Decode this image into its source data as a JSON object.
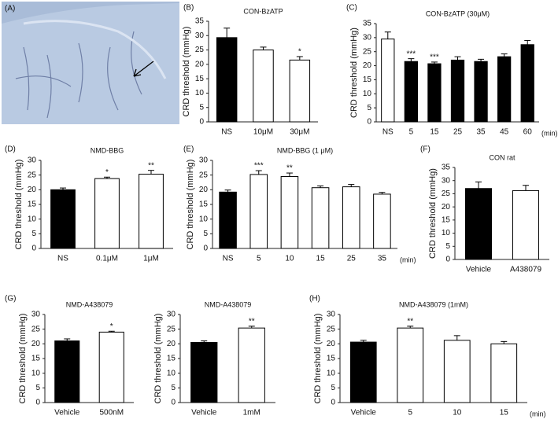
{
  "image_panel": {
    "panel": "(A)"
  },
  "chart_data": [
    {
      "type": "bar",
      "panel": "(B)",
      "title": "CON-BzATP",
      "y_label": "CRD threshold (mmHg)",
      "categories": [
        "NS",
        "10μM",
        "30μM"
      ],
      "values": [
        29.3,
        25,
        21.5
      ],
      "errors": [
        3.3,
        1,
        1.2
      ],
      "colors": [
        "#000000",
        "#ffffff",
        "#ffffff"
      ],
      "annotations": [
        null,
        null,
        "*"
      ],
      "ylim": [
        0,
        35
      ],
      "yticks": [
        0,
        5,
        10,
        15,
        20,
        25,
        30,
        35
      ]
    },
    {
      "type": "bar",
      "panel": "(C)",
      "title": "CON-BzATP (30μM)",
      "y_label": "CRD threshold (mmHg)",
      "x_label": "(min)",
      "categories": [
        "NS",
        "5",
        "15",
        "25",
        "35",
        "45",
        "60"
      ],
      "values": [
        29.5,
        21.5,
        20.7,
        22,
        21.5,
        23.2,
        27.5
      ],
      "errors": [
        2.5,
        1,
        0.6,
        1.2,
        0.8,
        1,
        1.5
      ],
      "colors": [
        "#ffffff",
        "#000000",
        "#000000",
        "#000000",
        "#000000",
        "#000000",
        "#000000"
      ],
      "annotations": [
        null,
        "***",
        "***",
        null,
        null,
        null,
        null
      ],
      "ylim": [
        0,
        35
      ],
      "yticks": [
        0,
        5,
        10,
        15,
        20,
        25,
        30,
        35
      ]
    },
    {
      "type": "bar",
      "panel": "(D)",
      "title": "NMD-BBG",
      "y_label": "CRD threshold (mmHg)",
      "categories": [
        "NS",
        "0.1μM",
        "1μM"
      ],
      "values": [
        20,
        23.8,
        25.3
      ],
      "errors": [
        0.6,
        0.5,
        1.3
      ],
      "colors": [
        "#000000",
        "#ffffff",
        "#ffffff"
      ],
      "annotations": [
        null,
        "*",
        "**"
      ],
      "ylim": [
        0,
        30
      ],
      "yticks": [
        0,
        5,
        10,
        15,
        20,
        25,
        30
      ]
    },
    {
      "type": "bar",
      "panel": "(E)",
      "title": "NMD-BBG  (1 μM)",
      "y_label": "CRD threshold (mmHg)",
      "x_label": "(min)",
      "categories": [
        "NS",
        "5",
        "10",
        "15",
        "25",
        "35"
      ],
      "values": [
        19.2,
        25.2,
        24.5,
        20.7,
        21,
        18.5
      ],
      "errors": [
        0.7,
        1.3,
        1.2,
        0.6,
        0.8,
        0.6
      ],
      "colors": [
        "#000000",
        "#ffffff",
        "#ffffff",
        "#ffffff",
        "#ffffff",
        "#ffffff"
      ],
      "annotations": [
        null,
        "***",
        "**",
        null,
        null,
        null
      ],
      "ylim": [
        0,
        30
      ],
      "yticks": [
        0,
        5,
        10,
        15,
        20,
        25,
        30
      ]
    },
    {
      "type": "bar",
      "panel": "(F)",
      "title": "CON rat",
      "y_label": "CRD  threshold (mmHg)",
      "categories": [
        "Vehicle",
        "A438079"
      ],
      "values": [
        27,
        26.2
      ],
      "errors": [
        2.5,
        2
      ],
      "colors": [
        "#000000",
        "#ffffff"
      ],
      "annotations": [
        null,
        null
      ],
      "ylim": [
        0,
        35
      ],
      "yticks": [
        0,
        5,
        10,
        15,
        20,
        25,
        30,
        35
      ]
    },
    {
      "type": "bar",
      "panel": "(G)",
      "title": "NMD-A438079",
      "y_label": "CRD threshold (mmHg)",
      "categories": [
        "Vehicle",
        "500nM"
      ],
      "values": [
        21,
        24
      ],
      "errors": [
        0.7,
        0.3
      ],
      "colors": [
        "#000000",
        "#ffffff"
      ],
      "annotations": [
        null,
        "*"
      ],
      "ylim": [
        0,
        30
      ],
      "yticks": [
        0,
        5,
        10,
        15,
        20,
        25,
        30
      ]
    },
    {
      "type": "bar",
      "title": "NMD-A438079",
      "y_label": "CRD threshold (mmHg)",
      "categories": [
        "Vehicle",
        "1mM"
      ],
      "values": [
        20.5,
        25.4
      ],
      "errors": [
        0.5,
        0.6
      ],
      "colors": [
        "#000000",
        "#ffffff"
      ],
      "annotations": [
        null,
        "**"
      ],
      "ylim": [
        0,
        30
      ],
      "yticks": [
        0,
        5,
        10,
        15,
        20,
        25,
        30
      ]
    },
    {
      "type": "bar",
      "panel": "(H)",
      "title": "NMD-A438079 (1mM)",
      "y_label": "CRD threshold (mmHg)",
      "x_label": "(min)",
      "categories": [
        "Vehicle",
        "5",
        "10",
        "15"
      ],
      "values": [
        20.6,
        25.4,
        21.2,
        20
      ],
      "errors": [
        0.6,
        0.6,
        1.6,
        0.8
      ],
      "colors": [
        "#000000",
        "#ffffff",
        "#ffffff",
        "#ffffff"
      ],
      "annotations": [
        null,
        "**",
        null,
        null
      ],
      "ylim": [
        0,
        30
      ],
      "yticks": [
        0,
        5,
        10,
        15,
        20,
        25,
        30
      ]
    }
  ]
}
